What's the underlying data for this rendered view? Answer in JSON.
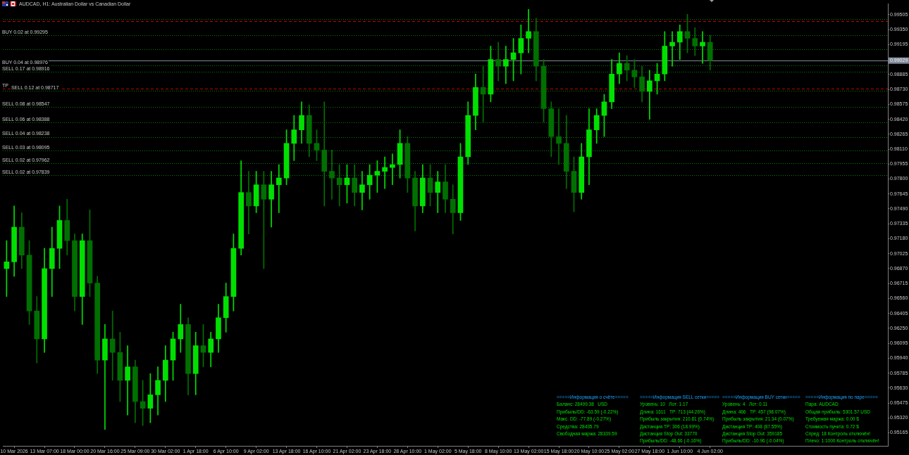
{
  "chart_data": {
    "type": "candlestick",
    "title": "AUDCAD, H1: Australian Dollar vs Canadian Dollar",
    "categories": [
      null,
      "10 Mar 2026",
      null,
      null,
      null,
      "13 Mar 07:00",
      null,
      null,
      null,
      "18 Mar 00:00",
      null,
      null,
      null,
      "20 Mar 16:00",
      null,
      null,
      null,
      "25 Mar 09:00",
      null,
      null,
      null,
      "30 Mar 02:00",
      null,
      null,
      null,
      "1 Apr 18:00",
      null,
      null,
      null,
      "6 Apr 10:00",
      null,
      null,
      null,
      "9 Apr 02:00",
      null,
      null,
      null,
      "13 Apr 18:00",
      null,
      null,
      null,
      "16 Apr 10:00",
      null,
      null,
      null,
      "21 Apr 02:00",
      null,
      null,
      null,
      "23 Apr 18:00",
      null,
      null,
      null,
      "28 Apr 10:00",
      null,
      null,
      null,
      "1 May 02:00",
      null,
      null,
      null,
      "5 May 18:00",
      null,
      null,
      null,
      "8 May 10:00",
      null,
      null,
      null,
      "13 May 02:00",
      null,
      null,
      null,
      "15 May 18:00",
      null,
      null,
      null,
      "20 May 10:00",
      null,
      null,
      null,
      "25 May 02:00",
      null,
      null,
      null,
      "27 May 18:00",
      null,
      null,
      null,
      "1 Jun 10:00",
      null,
      null,
      null,
      "4 Jun 02:00",
      null,
      null,
      null,
      null,
      null,
      null,
      null,
      null,
      null,
      null,
      null,
      null,
      null,
      null,
      null,
      null,
      null,
      null,
      null,
      null,
      null,
      null,
      null
    ],
    "ohlc": [
      [
        0.9687,
        0.9716,
        0.9658,
        0.9694
      ],
      [
        0.9694,
        0.9752,
        0.9679,
        0.973
      ],
      [
        0.973,
        0.9745,
        0.9687,
        0.9701
      ],
      [
        0.9701,
        0.9716,
        0.9629,
        0.9643
      ],
      [
        0.9643,
        0.9658,
        0.9589,
        0.9614
      ],
      [
        0.9614,
        0.9708,
        0.96,
        0.9687
      ],
      [
        0.9687,
        0.973,
        0.9658,
        0.9708
      ],
      [
        0.9708,
        0.9752,
        0.9687,
        0.9737
      ],
      [
        0.9737,
        0.9759,
        0.9701,
        0.9716
      ],
      [
        0.9716,
        0.9723,
        0.9643,
        0.9658
      ],
      [
        0.9658,
        0.9723,
        0.9629,
        0.9716
      ],
      [
        0.9716,
        0.9748,
        0.9658,
        0.9672
      ],
      [
        0.9672,
        0.9679,
        0.9578,
        0.9592
      ],
      [
        0.9592,
        0.9629,
        0.952,
        0.9614
      ],
      [
        0.9614,
        0.9643,
        0.9571,
        0.96
      ],
      [
        0.96,
        0.9621,
        0.9549,
        0.9571
      ],
      [
        0.9571,
        0.9607,
        0.9535,
        0.9585
      ],
      [
        0.9585,
        0.9592,
        0.9527,
        0.9549
      ],
      [
        0.9549,
        0.9571,
        0.9524,
        0.9542
      ],
      [
        0.9542,
        0.9578,
        0.9527,
        0.9556
      ],
      [
        0.9556,
        0.9585,
        0.9535,
        0.9571
      ],
      [
        0.9571,
        0.9607,
        0.9549,
        0.9592
      ],
      [
        0.9592,
        0.9621,
        0.9571,
        0.9614
      ],
      [
        0.9614,
        0.965,
        0.96,
        0.9629
      ],
      [
        0.9629,
        0.9636,
        0.9556,
        0.9578
      ],
      [
        0.9578,
        0.9621,
        0.9556,
        0.9607
      ],
      [
        0.9607,
        0.9629,
        0.9585,
        0.96
      ],
      [
        0.96,
        0.9621,
        0.9585,
        0.9614
      ],
      [
        0.9614,
        0.965,
        0.96,
        0.9636
      ],
      [
        0.9636,
        0.9672,
        0.9621,
        0.9658
      ],
      [
        0.9658,
        0.9723,
        0.9643,
        0.9708
      ],
      [
        0.9708,
        0.9799,
        0.9701,
        0.9766
      ],
      [
        0.9766,
        0.9788,
        0.9723,
        0.9752
      ],
      [
        0.9752,
        0.9788,
        0.9745,
        0.9774
      ],
      [
        0.9774,
        0.9788,
        0.9687,
        0.9759
      ],
      [
        0.9759,
        0.9788,
        0.973,
        0.9774
      ],
      [
        0.9774,
        0.9795,
        0.9745,
        0.9781
      ],
      [
        0.9781,
        0.9831,
        0.9774,
        0.9817
      ],
      [
        0.9817,
        0.9846,
        0.9799,
        0.9831
      ],
      [
        0.9831,
        0.986,
        0.9817,
        0.9846
      ],
      [
        0.9846,
        0.9857,
        0.9803,
        0.9817
      ],
      [
        0.9817,
        0.9831,
        0.9799,
        0.981
      ],
      [
        0.981,
        0.986,
        0.9752,
        0.9788
      ],
      [
        0.9788,
        0.981,
        0.9759,
        0.9781
      ],
      [
        0.9781,
        0.9795,
        0.9752,
        0.9774
      ],
      [
        0.9774,
        0.9795,
        0.9755,
        0.9781
      ],
      [
        0.9781,
        0.9795,
        0.9752,
        0.9766
      ],
      [
        0.9766,
        0.9788,
        0.9748,
        0.9774
      ],
      [
        0.9774,
        0.9795,
        0.9759,
        0.9784
      ],
      [
        0.9784,
        0.9799,
        0.9766,
        0.9788
      ],
      [
        0.9788,
        0.9803,
        0.977,
        0.9792
      ],
      [
        0.9792,
        0.9806,
        0.9774,
        0.9795
      ],
      [
        0.9795,
        0.9831,
        0.9781,
        0.9817
      ],
      [
        0.9817,
        0.9824,
        0.9766,
        0.9781
      ],
      [
        0.9781,
        0.9788,
        0.9726,
        0.9752
      ],
      [
        0.9752,
        0.9795,
        0.9745,
        0.9781
      ],
      [
        0.9781,
        0.9795,
        0.9752,
        0.9766
      ],
      [
        0.9766,
        0.9788,
        0.9745,
        0.9777
      ],
      [
        0.9777,
        0.9795,
        0.9745,
        0.9759
      ],
      [
        0.9759,
        0.9774,
        0.9723,
        0.9745
      ],
      [
        0.9745,
        0.9817,
        0.9737,
        0.9803
      ],
      [
        0.9803,
        0.986,
        0.9795,
        0.9846
      ],
      [
        0.9846,
        0.9889,
        0.9831,
        0.9875
      ],
      [
        0.9875,
        0.9897,
        0.9839,
        0.9868
      ],
      [
        0.9868,
        0.9918,
        0.986,
        0.9904
      ],
      [
        0.9904,
        0.9922,
        0.9882,
        0.9897
      ],
      [
        0.9897,
        0.9918,
        0.9879,
        0.9904
      ],
      [
        0.9904,
        0.9926,
        0.9882,
        0.9911
      ],
      [
        0.9911,
        0.994,
        0.9889,
        0.9926
      ],
      [
        0.9926,
        0.9956,
        0.9911,
        0.9933
      ],
      [
        0.9933,
        0.9947,
        0.9882,
        0.9897
      ],
      [
        0.9897,
        0.9904,
        0.9839,
        0.9853
      ],
      [
        0.9853,
        0.986,
        0.9803,
        0.9824
      ],
      [
        0.9824,
        0.9853,
        0.9795,
        0.9817
      ],
      [
        0.9817,
        0.9846,
        0.977,
        0.9788
      ],
      [
        0.9788,
        0.9803,
        0.9746,
        0.9766
      ],
      [
        0.9766,
        0.9817,
        0.9759,
        0.9803
      ],
      [
        0.9803,
        0.9853,
        0.9774,
        0.9831
      ],
      [
        0.9831,
        0.9853,
        0.9817,
        0.9846
      ],
      [
        0.9846,
        0.9868,
        0.9824,
        0.986
      ],
      [
        0.986,
        0.9904,
        0.9853,
        0.9889
      ],
      [
        0.9889,
        0.9911,
        0.9879,
        0.99
      ],
      [
        0.99,
        0.9908,
        0.9882,
        0.9893
      ],
      [
        0.9893,
        0.9904,
        0.9875,
        0.9886
      ],
      [
        0.9886,
        0.9897,
        0.986,
        0.9871
      ],
      [
        0.9871,
        0.9893,
        0.9842,
        0.9882
      ],
      [
        0.9882,
        0.99,
        0.9868,
        0.9889
      ],
      [
        0.9889,
        0.9933,
        0.9882,
        0.9918
      ],
      [
        0.9918,
        0.9933,
        0.9897,
        0.9922
      ],
      [
        0.9922,
        0.994,
        0.9904,
        0.9933
      ],
      [
        0.9933,
        0.9951,
        0.9911,
        0.9926
      ],
      [
        0.9926,
        0.9937,
        0.9908,
        0.9918
      ],
      [
        0.9918,
        0.9933,
        0.99,
        0.9922
      ],
      [
        0.9922,
        0.9929,
        0.9893,
        0.99029
      ],
      null,
      null,
      null,
      null,
      null,
      null,
      null,
      null,
      null,
      null,
      null,
      null,
      null,
      null,
      null,
      null,
      null,
      null,
      null,
      null,
      null,
      null,
      null
    ],
    "colors": [
      "#00e000",
      "#00e000",
      "#007000",
      "#007000",
      "#007000",
      "#00e000",
      "#00e000",
      "#00e000",
      "#007000",
      "#007000",
      "#00e000",
      "#007000",
      "#007000",
      "#00e000",
      "#007000",
      "#007000",
      "#00e000",
      "#007000",
      "#007000",
      "#00e000",
      "#00e000",
      "#00e000",
      "#00e000",
      "#00e000",
      "#007000",
      "#00e000",
      "#007000",
      "#00e000",
      "#00e000",
      "#00e000",
      "#00e000",
      "#00e000",
      "#007000",
      "#00e000",
      "#007000",
      "#00e000",
      "#00e000",
      "#00e000",
      "#00e000",
      "#00e000",
      "#007000",
      "#007000",
      "#007000",
      "#007000",
      "#007000",
      "#00e000",
      "#007000",
      "#00e000",
      "#00e000",
      "#00e000",
      "#00e000",
      "#00e000",
      "#00e000",
      "#007000",
      "#007000",
      "#00e000",
      "#007000",
      "#00e000",
      "#007000",
      "#007000",
      "#00e000",
      "#00e000",
      "#00e000",
      "#007000",
      "#00e000",
      "#007000",
      "#00e000",
      "#00e000",
      "#00e000",
      "#00e000",
      "#007000",
      "#007000",
      "#007000",
      "#007000",
      "#007000",
      "#007000",
      "#00e000",
      "#00e000",
      "#00e000",
      "#00e000",
      "#00e000",
      "#00e000",
      "#007000",
      "#007000",
      "#007000",
      "#00e000",
      "#00e000",
      "#00e000",
      "#00e000",
      "#00e000",
      "#007000",
      "#007000",
      "#00e000",
      "#007000",
      null,
      null,
      null,
      null,
      null,
      null,
      null,
      null,
      null,
      null,
      null,
      null,
      null,
      null,
      null,
      null,
      null,
      null,
      null,
      null,
      null,
      null,
      null
    ],
    "ylim": [
      0.9503,
      0.9962
    ],
    "yticks": [
      0.95165,
      {
        "value": 0.9532,
        "label": "0.95320"
      },
      0.95475,
      {
        "value": 0.9563,
        "label": "0.95630"
      },
      0.95785,
      {
        "value": 0.9594,
        "label": "0.95940"
      },
      0.96095,
      {
        "value": 0.9625,
        "label": "0.96250"
      },
      0.96405,
      {
        "value": 0.9656,
        "label": "0.96560"
      },
      0.96715,
      {
        "value": 0.9687,
        "label": "0.96870"
      },
      0.97025,
      {
        "value": 0.9718,
        "label": "0.97180"
      },
      0.97335,
      {
        "value": 0.9749,
        "label": "0.97490"
      },
      0.97645,
      {
        "value": 0.978,
        "label": "0.97800"
      },
      0.97955,
      {
        "value": 0.9811,
        "label": "0.98110"
      },
      0.98265,
      {
        "value": 0.9842,
        "label": "0.98420"
      },
      0.98575,
      {
        "value": 0.9873,
        "label": "0.98730"
      },
      0.98885,
      0.99195,
      {
        "value": 0.9935,
        "label": "0.99350"
      },
      0.99505
    ],
    "ref_lines": [
      {
        "axis": "y",
        "value": 0.9946,
        "color": "#008000",
        "line_style": "dotted"
      },
      {
        "axis": "y",
        "value": 0.9944,
        "color": "#c00000",
        "line_style": "dashed"
      },
      {
        "axis": "y",
        "value": 0.99295,
        "label": "BUY 0.02 at 0.99295",
        "color": "#008000",
        "line_style": "dotted"
      },
      {
        "axis": "y",
        "value": 0.9915,
        "color": "#008000",
        "line_style": "dotted"
      },
      {
        "axis": "y",
        "value": 0.99029,
        "label": "0.99029",
        "color": "#7f8a99",
        "line_style": "solid"
      },
      {
        "axis": "y",
        "value": 0.98976,
        "label": "BUY 0.04 at 0.98976",
        "color": "#008000",
        "line_style": "dotted"
      },
      {
        "axis": "y",
        "value": 0.98916,
        "label": "SELL 0.17 at 0.98916",
        "color": "#008000",
        "line_style": "dotted"
      },
      {
        "axis": "y",
        "value": 0.9874,
        "label": "TP",
        "color": "#c00000",
        "line_style": "dashed"
      },
      {
        "axis": "y",
        "value": 0.98717,
        "label": "SELL 0.12 at 0.98717",
        "color": "#008000",
        "line_style": "dotted"
      },
      {
        "axis": "y",
        "value": 0.98547,
        "label": "SELL 0.08 at 0.98547",
        "color": "#008000",
        "line_style": "dotted"
      },
      {
        "axis": "y",
        "value": 0.98388,
        "label": "SELL 0.06 at 0.98388",
        "color": "#008000",
        "line_style": "dotted"
      },
      {
        "axis": "y",
        "value": 0.98238,
        "label": "SELL 0.04 at 0.98238",
        "color": "#008000",
        "line_style": "dotted"
      },
      {
        "axis": "y",
        "value": 0.98095,
        "label": "SELL 0.03 at 0.98095",
        "color": "#008000",
        "line_style": "dotted"
      },
      {
        "axis": "y",
        "value": 0.97962,
        "label": "SELL 0.02 at 0.97962",
        "color": "#008000",
        "line_style": "dotted"
      },
      {
        "axis": "y",
        "value": 0.97839,
        "label": "SELL 0.02 at 0.97839",
        "color": "#008000",
        "line_style": "dotted"
      }
    ],
    "annotations": [
      "=====Информация о счёте=====",
      "Баланс: 28499.38   USD",
      "Прибыль/DD: -63.59 (-0.22%)",
      "Макс. DD: -77.89 (-0.27%)",
      "Средства: 28435.79",
      "Свободная маржа: 28339.59",
      "=====Информация SELL сетки=====",
      "Уровень: 10   Лот: 1.17",
      "Длина: 1611   TP: 713 (44.26%)",
      "Прибыль закрытия: 210.81 (0.74%)",
      "Дистанция TP: 306 (18.99%)",
      "Дистанция Stop Out: 33770",
      "Прибыль/DD: -48.66 (-0.16%)",
      "=====Информация BUY сетки=====",
      "Уровень: 4   Лот: 0.11",
      "Длина: 466   TP: 457 (98.07%)",
      "Прибыль закрытия: 21.34 (0.07%)",
      "Дистанция TP: 408 (87.55%)",
      "Дистанция Stop Out: 359185",
      "Прибыль/DD: -10.96 (-0.04%)",
      "=====Информация по паре=====",
      "Пара: AUDCAD",
      "Общая прибыль: 5301.57 USD",
      "Требуемая маржа: 0.00 $",
      "Стоимость пункта: 0.72 $",
      "Спред: 18 Контроль отключён!",
      "Плечо: 1:1000 Контроль отключён!"
    ]
  }
}
